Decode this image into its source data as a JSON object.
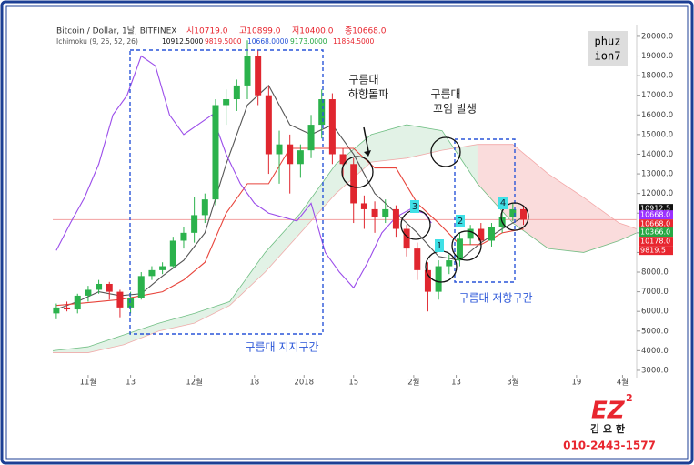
{
  "header": {
    "symbol": "Bitcoin / Dollar, 1날, BITFINEX",
    "ohlc": [
      "시10719.0",
      "고10899.0",
      "저10400.0",
      "종10668.0"
    ],
    "indicator": "Ichimoku (9, 26, 52, 26)",
    "indicator_values": [
      "10912.5000",
      "9819.5000",
      "10668.0000",
      "9173.0000",
      "11854.5000"
    ]
  },
  "chart_data": {
    "type": "candlestick",
    "xlim": [
      -10,
      155
    ],
    "ylim": [
      2860,
      20460
    ],
    "xticks": [
      {
        "value": 0,
        "label": "11월"
      },
      {
        "value": 12,
        "label": "13"
      },
      {
        "value": 30,
        "label": "12월"
      },
      {
        "value": 47,
        "label": "18"
      },
      {
        "value": 61,
        "label": "2018"
      },
      {
        "value": 75,
        "label": "15"
      },
      {
        "value": 92,
        "label": "2월"
      },
      {
        "value": 104,
        "label": "13"
      },
      {
        "value": 120,
        "label": "3월"
      },
      {
        "value": 138,
        "label": "19"
      },
      {
        "value": 151,
        "label": "4월"
      }
    ],
    "yticks": [
      {
        "value": 20000,
        "label": "20000.0"
      },
      {
        "value": 19000,
        "label": "19000.0"
      },
      {
        "value": 18000,
        "label": "18000.0"
      },
      {
        "value": 17000,
        "label": "17000.0"
      },
      {
        "value": 16000,
        "label": "16000.0"
      },
      {
        "value": 15000,
        "label": "15000.0"
      },
      {
        "value": 14000,
        "label": "14000.0"
      },
      {
        "value": 13000,
        "label": "13000.0"
      },
      {
        "value": 12000,
        "label": "12000.0"
      },
      {
        "value": 11000,
        "label": "11000.0"
      },
      {
        "value": 10000,
        "label": "10000.0"
      },
      {
        "value": 9000,
        "label": "9000.0"
      },
      {
        "value": 8000,
        "label": "8000.0"
      },
      {
        "value": 7000,
        "label": "7000.0"
      },
      {
        "value": 6000,
        "label": "6000.0"
      },
      {
        "value": 5000,
        "label": "5000.0"
      },
      {
        "value": 4000,
        "label": "4000.0"
      },
      {
        "value": 3000,
        "label": "3000.0"
      }
    ],
    "candles": {
      "up_color": "#2bb24c",
      "down_color": "#e0262f",
      "x": [
        -9,
        -6,
        -3,
        0,
        3,
        6,
        9,
        12,
        15,
        18,
        21,
        24,
        27,
        30,
        33,
        36,
        39,
        42,
        45,
        48,
        51,
        54,
        57,
        60,
        63,
        66,
        69,
        72,
        75,
        78,
        81,
        84,
        87,
        90,
        93,
        96,
        99,
        102,
        105,
        108,
        111,
        114,
        117,
        120,
        123
      ],
      "open": [
        5900,
        6200,
        6100,
        6800,
        7100,
        7400,
        7000,
        6200,
        6700,
        7800,
        8100,
        8300,
        9600,
        10000,
        10900,
        11700,
        16500,
        16800,
        17500,
        19000,
        17000,
        14000,
        14500,
        13500,
        14200,
        15500,
        16800,
        14000,
        13500,
        11500,
        11200,
        10800,
        11200,
        10200,
        9200,
        8100,
        7000,
        8300,
        8600,
        9700,
        10200,
        9600,
        10300,
        10800,
        11200
      ],
      "high": [
        6400,
        6500,
        6900,
        7300,
        7600,
        7500,
        7100,
        7000,
        8000,
        8300,
        8500,
        9800,
        10300,
        11800,
        12000,
        16800,
        17300,
        17800,
        19800,
        19300,
        17500,
        15200,
        15000,
        14500,
        16000,
        17300,
        17100,
        14300,
        13800,
        11900,
        11600,
        11700,
        11400,
        10400,
        9500,
        8500,
        8600,
        8900,
        10000,
        10400,
        10500,
        10500,
        11100,
        11500,
        11400
      ],
      "low": [
        5600,
        6000,
        5900,
        6500,
        6900,
        6600,
        5700,
        5900,
        6600,
        7600,
        7900,
        8200,
        9200,
        9500,
        10500,
        11400,
        15500,
        16200,
        16800,
        16500,
        13000,
        12500,
        12000,
        12800,
        13800,
        14800,
        13500,
        12800,
        10500,
        10200,
        10000,
        10500,
        9800,
        8800,
        7600,
        6000,
        6600,
        7900,
        8300,
        9400,
        9400,
        9300,
        10000,
        10600,
        10400
      ],
      "close": [
        6200,
        6100,
        6800,
        7100,
        7400,
        7000,
        6200,
        6700,
        7800,
        8100,
        8300,
        9600,
        10000,
        10900,
        11700,
        16500,
        16800,
        17500,
        19000,
        17000,
        14000,
        14500,
        13500,
        14200,
        15500,
        16800,
        14000,
        13500,
        11500,
        11200,
        10800,
        11200,
        10200,
        9200,
        8100,
        7000,
        8300,
        8600,
        9700,
        10200,
        9600,
        10300,
        10800,
        11200,
        10668
      ]
    },
    "lines": [
      {
        "color": "#555555",
        "x": [
          -9,
          -3,
          3,
          9,
          15,
          21,
          27,
          33,
          39,
          45,
          51,
          57,
          63,
          69,
          75,
          81,
          87,
          93,
          99,
          105,
          111,
          117,
          123
        ],
        "values": [
          6100,
          6500,
          7000,
          6800,
          6900,
          7800,
          8600,
          10000,
          13500,
          16500,
          17500,
          15500,
          15000,
          15500,
          14000,
          12000,
          11000,
          10000,
          8800,
          8600,
          9500,
          10200,
          10800
        ]
      },
      {
        "color": "#e8453c",
        "x": [
          -9,
          -3,
          3,
          9,
          15,
          21,
          27,
          33,
          39,
          45,
          51,
          57,
          63,
          69,
          75,
          81,
          87,
          93,
          99,
          105,
          111,
          117,
          123
        ],
        "values": [
          6300,
          6400,
          6500,
          6600,
          6800,
          7000,
          7600,
          8500,
          11000,
          12500,
          12500,
          14300,
          14300,
          14300,
          14300,
          13300,
          13300,
          11500,
          10500,
          9400,
          9400,
          10000,
          10200
        ]
      },
      {
        "color": "#9b4dea",
        "x": [
          -9,
          -5,
          -1,
          3,
          7,
          11,
          15,
          19,
          23,
          27,
          31,
          35,
          39,
          43,
          47,
          51,
          55,
          59,
          63,
          67,
          71,
          75,
          79,
          83,
          87,
          91,
          95,
          97
        ],
        "values": [
          9100,
          10500,
          11800,
          13500,
          16000,
          17000,
          19000,
          18500,
          16000,
          15000,
          15500,
          16000,
          14000,
          12500,
          11500,
          11000,
          10800,
          10600,
          11500,
          9000,
          8000,
          7200,
          8500,
          10000,
          10800,
          11200,
          11000,
          10500
        ]
      }
    ],
    "cloud": {
      "up_color": "#3aa655",
      "down_color": "#f08a8a",
      "x": [
        -10,
        0,
        10,
        20,
        30,
        40,
        50,
        60,
        70,
        80,
        90,
        100,
        110,
        120,
        130,
        140,
        150,
        155
      ],
      "span_a": [
        4000,
        4200,
        4800,
        5400,
        5900,
        6500,
        9000,
        11000,
        13500,
        15000,
        15500,
        15200,
        12500,
        10500,
        9200,
        9000,
        9600,
        10000
      ],
      "span_b": [
        3900,
        3900,
        4300,
        5000,
        5400,
        6300,
        8000,
        10000,
        12000,
        13600,
        13800,
        14200,
        14500,
        14500,
        13000,
        11800,
        10500,
        10200
      ]
    },
    "reference_line": 10668,
    "price_tags": [
      {
        "value": 10912.5,
        "color": "#111111"
      },
      {
        "value": 10668,
        "label": "10668.0",
        "color": "#9b30ff"
      },
      {
        "value": 10668,
        "label": "10668.0",
        "color": "#e8262f"
      },
      {
        "value": 10366,
        "label": "10366.0",
        "color": "#26a844"
      },
      {
        "value": 10178,
        "label": "10178.0",
        "color": "#e8262f"
      },
      {
        "value": 9819.5,
        "label": "9819.5",
        "color": "#e8262f"
      }
    ],
    "annotations": {
      "breakdown": [
        "구름대",
        "하향돌파"
      ],
      "twist": [
        "구름대",
        "꼬임  발생"
      ],
      "support": "구름대  지지구간",
      "resistance": "구름대  저항구간",
      "markers": [
        "1",
        "2",
        "3",
        "4"
      ]
    }
  },
  "watermark": [
    "phuz",
    "ion7"
  ],
  "contact": {
    "logo": "EZ",
    "logo_sup": "2",
    "name": "김 요 한",
    "phone": "010-2443-1577"
  }
}
